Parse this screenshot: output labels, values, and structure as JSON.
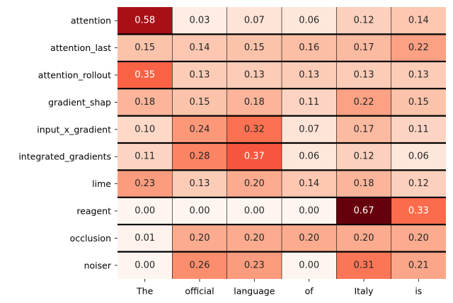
{
  "chart_data": {
    "type": "heatmap",
    "title": "",
    "xlabel": "",
    "ylabel": "",
    "x_categories": [
      "The",
      "official",
      "language",
      "of",
      "Italy",
      "is"
    ],
    "y_categories": [
      "attention",
      "attention_last",
      "attention_rollout",
      "gradient_shap",
      "input_x_gradient",
      "integrated_gradients",
      "lime",
      "reagent",
      "occlusion",
      "noiser"
    ],
    "values": [
      [
        0.58,
        0.03,
        0.07,
        0.06,
        0.12,
        0.14
      ],
      [
        0.15,
        0.14,
        0.15,
        0.16,
        0.17,
        0.22
      ],
      [
        0.35,
        0.13,
        0.13,
        0.13,
        0.13,
        0.13
      ],
      [
        0.18,
        0.15,
        0.18,
        0.11,
        0.22,
        0.15
      ],
      [
        0.1,
        0.24,
        0.32,
        0.07,
        0.17,
        0.11
      ],
      [
        0.11,
        0.28,
        0.37,
        0.06,
        0.12,
        0.06
      ],
      [
        0.23,
        0.13,
        0.2,
        0.14,
        0.18,
        0.12
      ],
      [
        0.0,
        0.0,
        0.0,
        0.0,
        0.67,
        0.33
      ],
      [
        0.01,
        0.2,
        0.2,
        0.2,
        0.2,
        0.2
      ],
      [
        0.0,
        0.26,
        0.23,
        0.0,
        0.31,
        0.21
      ]
    ],
    "colormap": "Reds",
    "vmin": 0.0,
    "vmax": 0.67,
    "annotations": true,
    "value_format": "2 decimals",
    "colorbar": false,
    "legend": "none"
  }
}
